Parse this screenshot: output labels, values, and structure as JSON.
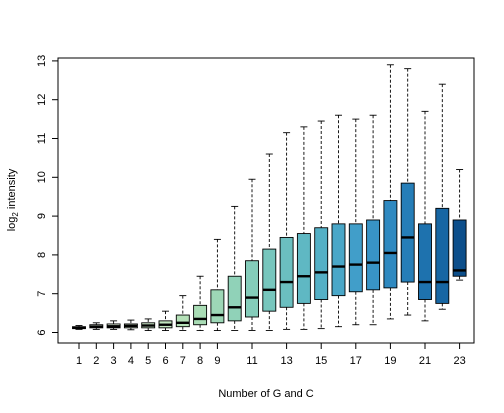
{
  "chart_data": {
    "type": "box",
    "xlabel": "Number of G and C",
    "ylabel": "log",
    "ylabel_subscript": "2",
    "ylabel_suffix": " intensity",
    "ylim": [
      5.8,
      13.1
    ],
    "yticks": [
      6,
      7,
      8,
      9,
      10,
      11,
      12,
      13
    ],
    "xtick_labels": [
      "1",
      "2",
      "3",
      "4",
      "5",
      "6",
      "7",
      "8",
      "9",
      "11",
      "13",
      "15",
      "17",
      "19",
      "21",
      "23"
    ],
    "xtick_positions": [
      1,
      2,
      3,
      4,
      5,
      6,
      7,
      8,
      9,
      11,
      13,
      15,
      17,
      19,
      21,
      23
    ],
    "boxes": [
      {
        "x": 1,
        "wl": 6.08,
        "q1": 6.1,
        "med": 6.12,
        "q3": 6.15,
        "wh": 6.18,
        "color": "#f7fcf0"
      },
      {
        "x": 2,
        "wl": 6.08,
        "q1": 6.12,
        "med": 6.15,
        "q3": 6.2,
        "wh": 6.25,
        "color": "#eef8e8"
      },
      {
        "x": 3,
        "wl": 6.08,
        "q1": 6.12,
        "med": 6.16,
        "q3": 6.22,
        "wh": 6.3,
        "color": "#e4f4de"
      },
      {
        "x": 4,
        "wl": 6.07,
        "q1": 6.12,
        "med": 6.17,
        "q3": 6.22,
        "wh": 6.32,
        "color": "#daf0d4"
      },
      {
        "x": 5,
        "wl": 6.05,
        "q1": 6.12,
        "med": 6.18,
        "q3": 6.25,
        "wh": 6.35,
        "color": "#ceebca"
      },
      {
        "x": 6,
        "wl": 6.05,
        "q1": 6.12,
        "med": 6.2,
        "q3": 6.3,
        "wh": 6.55,
        "color": "#c2e6c0"
      },
      {
        "x": 7,
        "wl": 6.05,
        "q1": 6.15,
        "med": 6.25,
        "q3": 6.45,
        "wh": 6.95,
        "color": "#b5e1b8"
      },
      {
        "x": 8,
        "wl": 6.05,
        "q1": 6.2,
        "med": 6.35,
        "q3": 6.7,
        "wh": 7.45,
        "color": "#a9dcb5"
      },
      {
        "x": 9,
        "wl": 6.05,
        "q1": 6.25,
        "med": 6.45,
        "q3": 7.1,
        "wh": 8.4,
        "color": "#9dd7b6"
      },
      {
        "x": 10,
        "wl": 6.05,
        "q1": 6.3,
        "med": 6.65,
        "q3": 7.45,
        "wh": 9.25,
        "color": "#90d2b8"
      },
      {
        "x": 11,
        "wl": 6.05,
        "q1": 6.4,
        "med": 6.9,
        "q3": 7.85,
        "wh": 9.95,
        "color": "#84ccba"
      },
      {
        "x": 12,
        "wl": 6.05,
        "q1": 6.55,
        "med": 7.1,
        "q3": 8.15,
        "wh": 10.6,
        "color": "#77c6bd"
      },
      {
        "x": 13,
        "wl": 6.08,
        "q1": 6.65,
        "med": 7.3,
        "q3": 8.45,
        "wh": 11.15,
        "color": "#6bbfc0"
      },
      {
        "x": 14,
        "wl": 6.08,
        "q1": 6.75,
        "med": 7.45,
        "q3": 8.55,
        "wh": 11.3,
        "color": "#5fb8c3"
      },
      {
        "x": 15,
        "wl": 6.1,
        "q1": 6.85,
        "med": 7.55,
        "q3": 8.7,
        "wh": 11.45,
        "color": "#54b0c6"
      },
      {
        "x": 16,
        "wl": 6.15,
        "q1": 6.95,
        "med": 7.7,
        "q3": 8.8,
        "wh": 11.6,
        "color": "#4aa7c8"
      },
      {
        "x": 17,
        "wl": 6.2,
        "q1": 7.05,
        "med": 7.75,
        "q3": 8.8,
        "wh": 11.5,
        "color": "#419ec9"
      },
      {
        "x": 18,
        "wl": 6.2,
        "q1": 7.1,
        "med": 7.8,
        "q3": 8.9,
        "wh": 11.6,
        "color": "#3894c6"
      },
      {
        "x": 19,
        "wl": 6.35,
        "q1": 7.15,
        "med": 8.05,
        "q3": 9.4,
        "wh": 12.9,
        "color": "#2f89c0"
      },
      {
        "x": 20,
        "wl": 6.45,
        "q1": 7.3,
        "med": 8.45,
        "q3": 9.85,
        "wh": 12.8,
        "color": "#267eb8"
      },
      {
        "x": 21,
        "wl": 6.3,
        "q1": 6.85,
        "med": 7.3,
        "q3": 8.8,
        "wh": 11.7,
        "color": "#1e72ae"
      },
      {
        "x": 22,
        "wl": 6.6,
        "q1": 6.75,
        "med": 7.3,
        "q3": 9.2,
        "wh": 12.4,
        "color": "#1766a3"
      },
      {
        "x": 23,
        "wl": 7.35,
        "q1": 7.45,
        "med": 7.6,
        "q3": 8.9,
        "wh": 10.2,
        "color": "#0d4f8b"
      }
    ]
  }
}
